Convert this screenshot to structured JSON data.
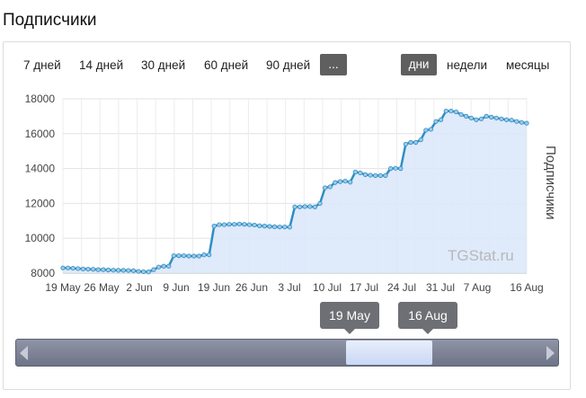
{
  "header": {
    "title": "Подписчики"
  },
  "ranges": [
    {
      "label": "7 дней"
    },
    {
      "label": "14 дней"
    },
    {
      "label": "30 дней"
    },
    {
      "label": "60 дней"
    },
    {
      "label": "90 дней"
    },
    {
      "label": "...",
      "active": true
    }
  ],
  "granularity": [
    {
      "label": "дни",
      "active": true
    },
    {
      "label": "недели"
    },
    {
      "label": "месяцы"
    }
  ],
  "navigator": {
    "from_label": "19 May",
    "to_label": "16 Aug"
  },
  "colors": {
    "line": "#2f8ec4",
    "fill": "#dce8fb",
    "active_button": "#5f5f5f"
  },
  "chart_data": {
    "type": "area",
    "title": "",
    "ylabel": "Подписчики",
    "watermark": "TGStat.ru",
    "ylim": [
      8000,
      18000
    ],
    "yticks": [
      8000,
      10000,
      12000,
      14000,
      16000,
      18000
    ],
    "ytick_labels": [
      "8000",
      "10000",
      "12000",
      "14000",
      "16000",
      "18000"
    ],
    "xlim": [
      "2023-05-19",
      "2023-08-16"
    ],
    "xtick_labels": [
      "19 May",
      "26 May",
      "2 Jun",
      "9 Jun",
      "19 Jun",
      "26 Jun",
      "3 Jul",
      "10 Jul",
      "17 Jul",
      "24 Jul",
      "31 Jul",
      "7 Aug",
      "16 Aug"
    ],
    "grid": true,
    "series": [
      {
        "values": [
          8300,
          8300,
          8280,
          8260,
          8240,
          8230,
          8220,
          8200,
          8200,
          8180,
          8170,
          8160,
          8160,
          8150,
          8140,
          8100,
          8080,
          8070,
          8200,
          8350,
          8400,
          8400,
          9000,
          9000,
          9000,
          8980,
          8980,
          8980,
          9050,
          9050,
          10700,
          10780,
          10780,
          10800,
          10800,
          10820,
          10800,
          10780,
          10760,
          10720,
          10700,
          10680,
          10660,
          10650,
          10650,
          10640,
          11800,
          11800,
          11820,
          11820,
          11800,
          12000,
          12900,
          12950,
          13200,
          13250,
          13280,
          13220,
          13800,
          13750,
          13650,
          13620,
          13600,
          13600,
          13600,
          14000,
          14020,
          14000,
          15400,
          15500,
          15500,
          15650,
          16200,
          16250,
          16700,
          16800,
          17300,
          17300,
          17250,
          17100,
          17000,
          16900,
          16800,
          16850,
          17000,
          16950,
          16900,
          16850,
          16800,
          16780,
          16700,
          16650,
          16600
        ]
      }
    ]
  }
}
